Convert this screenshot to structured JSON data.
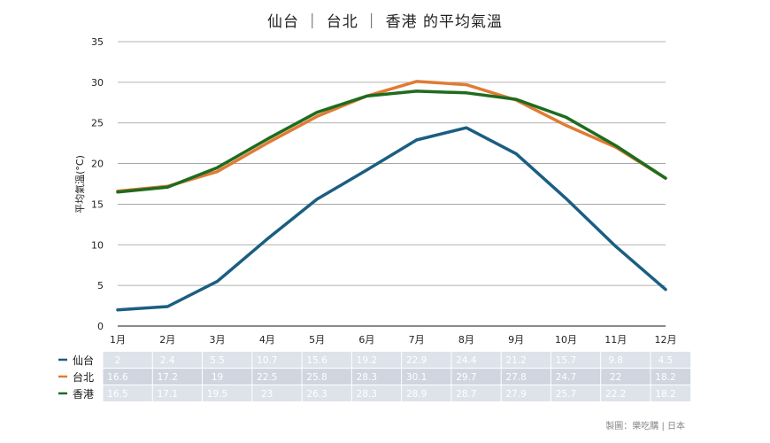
{
  "chart_data": {
    "type": "line",
    "title": "仙台 ｜ 台北 ｜ 香港 的平均氣溫",
    "ylabel": "平均氣溫(°C)",
    "xlabel": "",
    "ylim": [
      0,
      35
    ],
    "yticks": [
      0,
      5,
      10,
      15,
      20,
      25,
      30,
      35
    ],
    "grid": true,
    "categories": [
      "1月",
      "2月",
      "3月",
      "4月",
      "5月",
      "6月",
      "7月",
      "8月",
      "9月",
      "10月",
      "11月",
      "12月"
    ],
    "series": [
      {
        "name": "仙台",
        "color": "#1b5e82",
        "values": [
          2,
          2.4,
          5.5,
          10.7,
          15.6,
          19.2,
          22.9,
          24.4,
          21.2,
          15.7,
          9.8,
          4.5
        ],
        "labels": [
          "2",
          "2.4",
          "5.5",
          "10.7",
          "15.6",
          "19.2",
          "22.9",
          "24.4",
          "21.2",
          "15.7",
          "9.8",
          "4.5"
        ]
      },
      {
        "name": "台北",
        "color": "#e07b34",
        "values": [
          16.6,
          17.2,
          19,
          22.5,
          25.8,
          28.3,
          30.1,
          29.7,
          27.8,
          24.7,
          22,
          18.2
        ],
        "labels": [
          "16.6",
          "17.2",
          "19",
          "22.5",
          "25.8",
          "28.3",
          "30.1",
          "29.7",
          "27.8",
          "24.7",
          "22",
          "18.2"
        ]
      },
      {
        "name": "香港",
        "color": "#1f6b1f",
        "values": [
          16.5,
          17.1,
          19.5,
          23,
          26.3,
          28.3,
          28.9,
          28.7,
          27.9,
          25.7,
          22.2,
          18.2
        ],
        "labels": [
          "16.5",
          "17.1",
          "19.5",
          "23",
          "26.3",
          "28.3",
          "28.9",
          "28.7",
          "27.9",
          "25.7",
          "22.2",
          "18.2"
        ]
      }
    ]
  },
  "credit": "製圖：樂吃購 | 日本"
}
